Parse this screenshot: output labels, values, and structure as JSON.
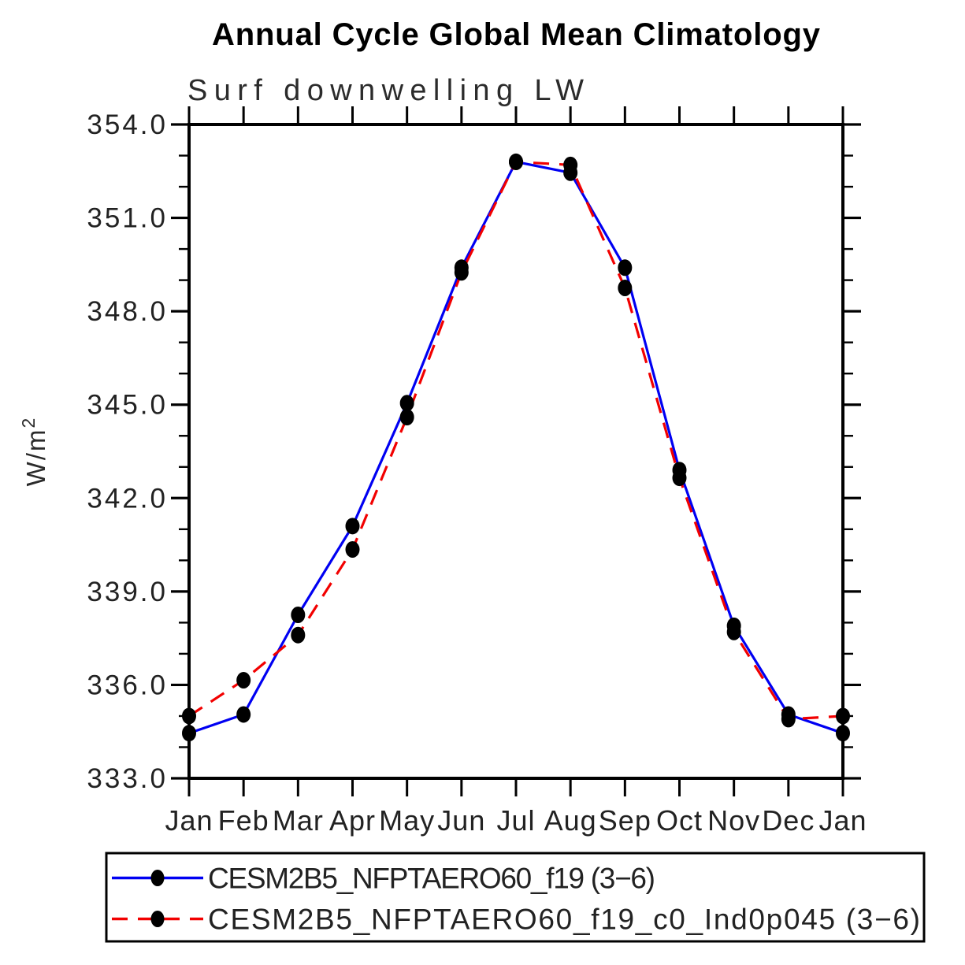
{
  "chart_data": {
    "type": "line",
    "title": "Annual Cycle Global Mean Climatology",
    "subtitle": "Surf downwelling LW",
    "ylabel": "W/m²",
    "xlabel": "",
    "x_categories": [
      "Jan",
      "Feb",
      "Mar",
      "Apr",
      "May",
      "Jun",
      "Jul",
      "Aug",
      "Sep",
      "Oct",
      "Nov",
      "Dec",
      "Jan"
    ],
    "ylim": [
      333.0,
      354.0
    ],
    "y_major_ticks": [
      333.0,
      336.0,
      339.0,
      342.0,
      345.0,
      348.0,
      351.0,
      354.0
    ],
    "y_major_tick_labels": [
      "333.0",
      "336.0",
      "339.0",
      "342.0",
      "345.0",
      "348.0",
      "351.0",
      "354.0"
    ],
    "y_minor_tick_step": 1.0,
    "grid": false,
    "legend_position": "bottom",
    "frame_color": "#000000",
    "marker_color": "#000000",
    "series": [
      {
        "name": "CESM2B5_NFPTAERO60_f19 (3−6)",
        "color": "#0000f2",
        "line_style": "solid",
        "marker": "filled-circle",
        "values": [
          334.45,
          335.05,
          338.25,
          341.1,
          345.05,
          349.4,
          352.8,
          352.45,
          349.4,
          342.9,
          337.9,
          335.05,
          334.45
        ]
      },
      {
        "name": "CESM2B5_NFPTAERO60_f19_c0_Ind0p045 (3−6)",
        "color": "#f20000",
        "line_style": "dashed",
        "marker": "filled-circle",
        "values": [
          335.0,
          336.15,
          337.6,
          340.35,
          344.6,
          349.25,
          352.8,
          352.7,
          348.75,
          342.65,
          337.7,
          334.9,
          335.0
        ]
      }
    ]
  }
}
